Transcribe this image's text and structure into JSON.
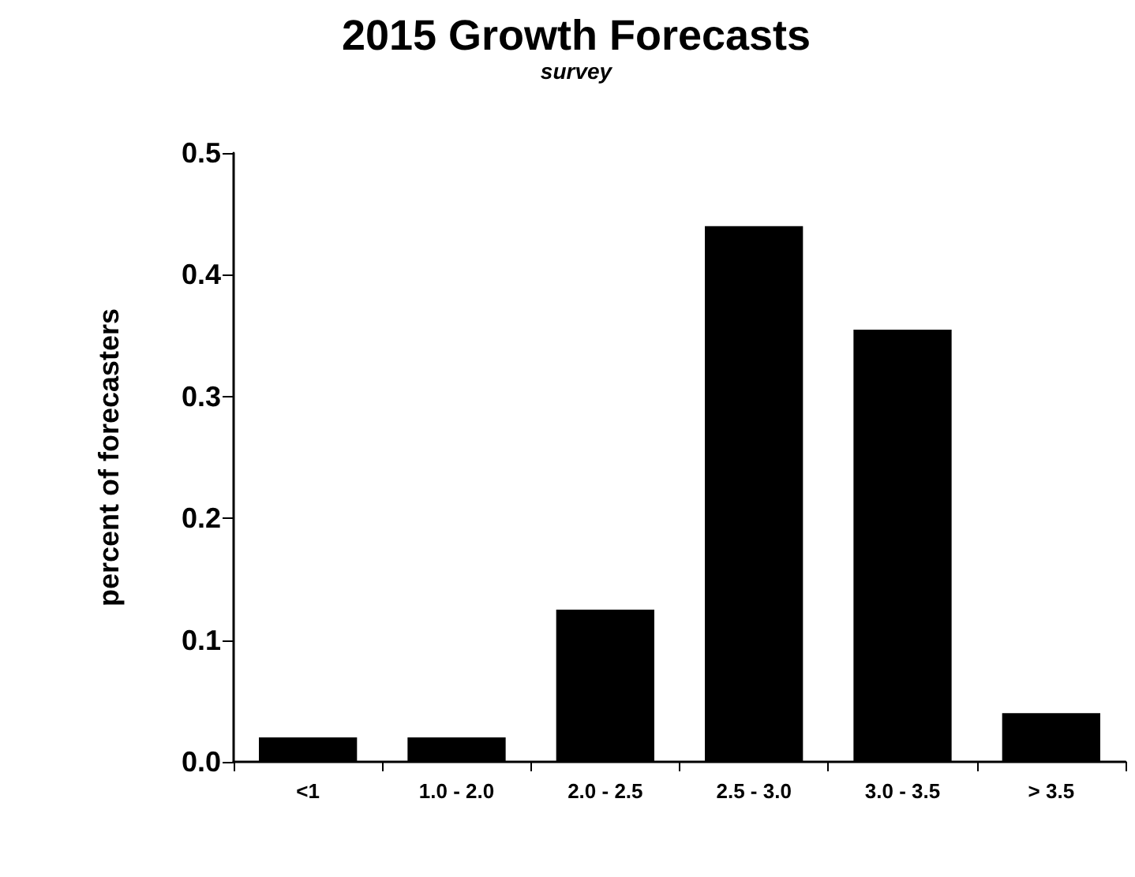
{
  "chart_data": {
    "type": "bar",
    "title": "2015 Growth Forecasts",
    "subtitle": "survey",
    "ylabel": "percent of forecasters",
    "categories": [
      "<1",
      "1.0 - 2.0",
      "2.0 - 2.5",
      "2.5 - 3.0",
      "3.0 - 3.5",
      "> 3.5"
    ],
    "values": [
      0.02,
      0.02,
      0.125,
      0.44,
      0.355,
      0.04
    ],
    "color": "#000000",
    "ylim": [
      0,
      0.5
    ],
    "yticks": [
      {
        "value": 0,
        "label": "0.0"
      },
      0.1,
      0.2,
      0.3,
      0.4,
      0.5
    ],
    "grid": false
  }
}
